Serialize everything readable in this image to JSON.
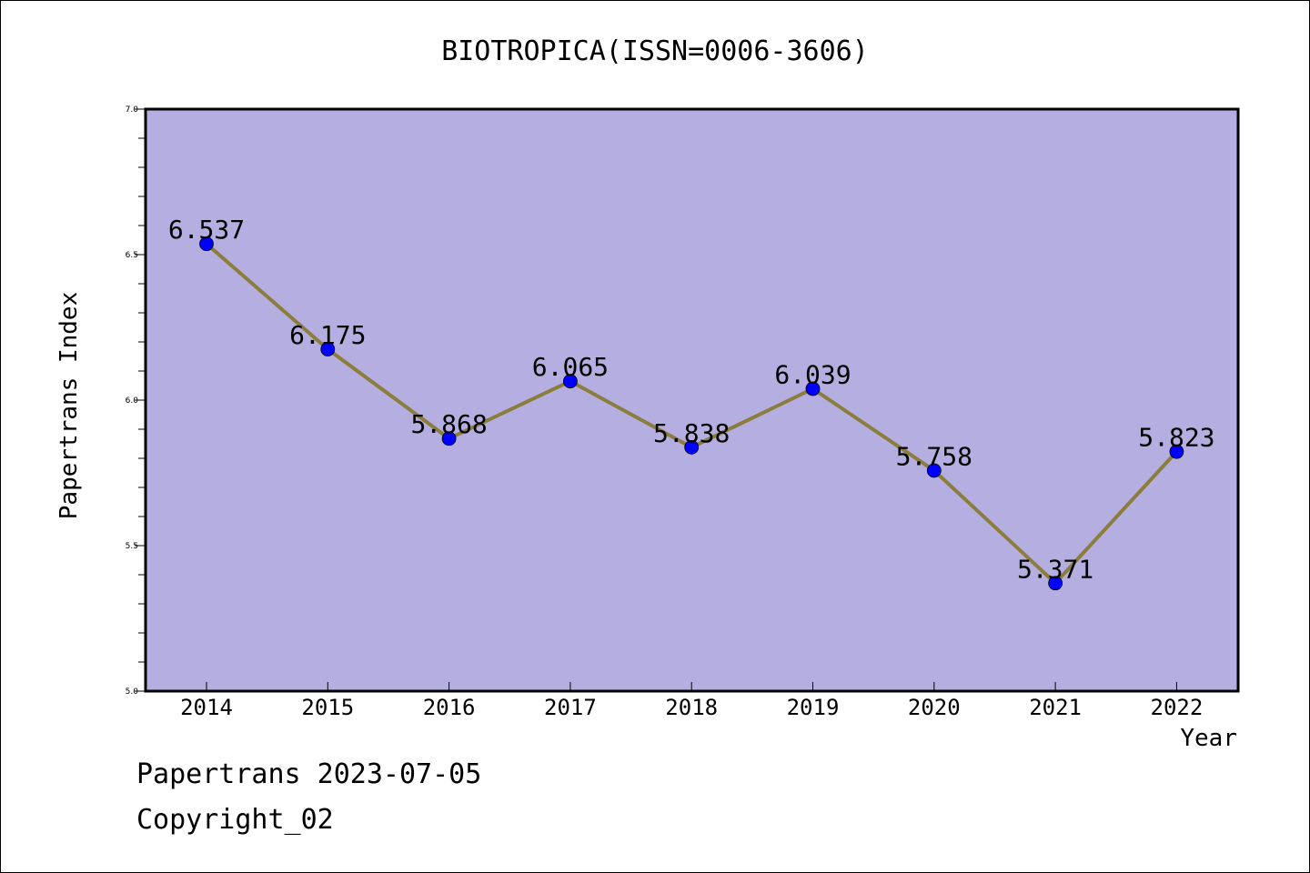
{
  "chart_data": {
    "type": "line",
    "title": "BIOTROPICA(ISSN=0006-3606)",
    "xlabel": "Year",
    "ylabel": "Papertrans Index",
    "categories": [
      "2014",
      "2015",
      "2016",
      "2017",
      "2018",
      "2019",
      "2020",
      "2021",
      "2022"
    ],
    "series": [
      {
        "values": [
          6.537,
          6.175,
          5.868,
          6.065,
          5.838,
          6.039,
          5.758,
          5.371,
          5.823
        ]
      }
    ],
    "data_labels": [
      "6.537",
      "6.175",
      "5.868",
      "6.065",
      "5.838",
      "6.039",
      "5.758",
      "5.371",
      "5.823"
    ],
    "ylim": [
      5.0,
      7.0
    ],
    "y_ticks": [
      "5.0",
      "5.5",
      "6.0",
      "6.5",
      "7.0"
    ],
    "grid": false,
    "colors": {
      "plot_background": "#b5afe1",
      "line": "#8b7d3c",
      "marker": "#0000ff"
    }
  },
  "footer": {
    "line1": "Papertrans 2023-07-05",
    "line2": "Copyright_02"
  }
}
